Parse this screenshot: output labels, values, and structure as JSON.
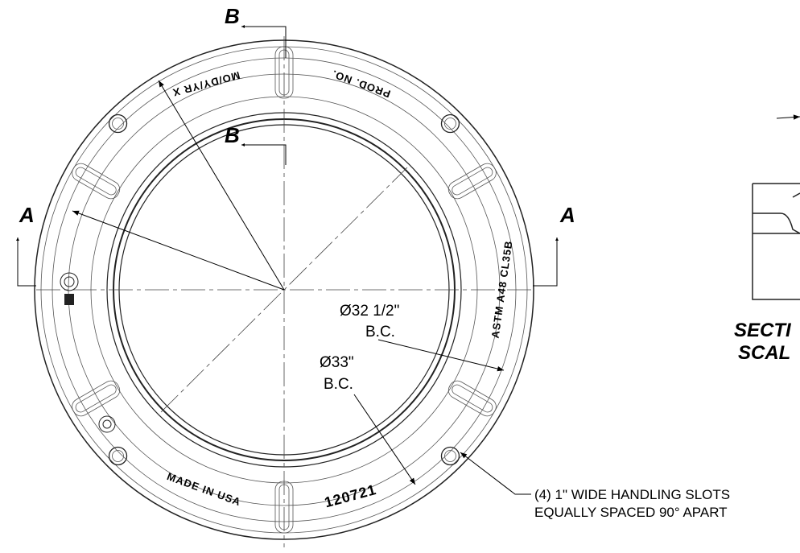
{
  "labels": {
    "section_b_top": "B",
    "section_b_inner": "B",
    "section_a_left": "A",
    "section_a_right": "A"
  },
  "ring_text": {
    "date": "MO/DY/YR X",
    "prod": "PROD. NO.",
    "astm": "ASTM A48 CL35B",
    "made": "MADE IN USA",
    "part": "120721"
  },
  "dimensions": {
    "inner_dia": "Ø32 1/2\"",
    "inner_bc": "B.C.",
    "outer_dia": "Ø33\"",
    "outer_bc": "B.C."
  },
  "note": {
    "line1": "(4) 1\" WIDE HANDLING SLOTS",
    "line2": "EQUALLY SPACED 90° APART"
  },
  "section_view": {
    "title": "SECTI",
    "scale": "SCAL"
  }
}
